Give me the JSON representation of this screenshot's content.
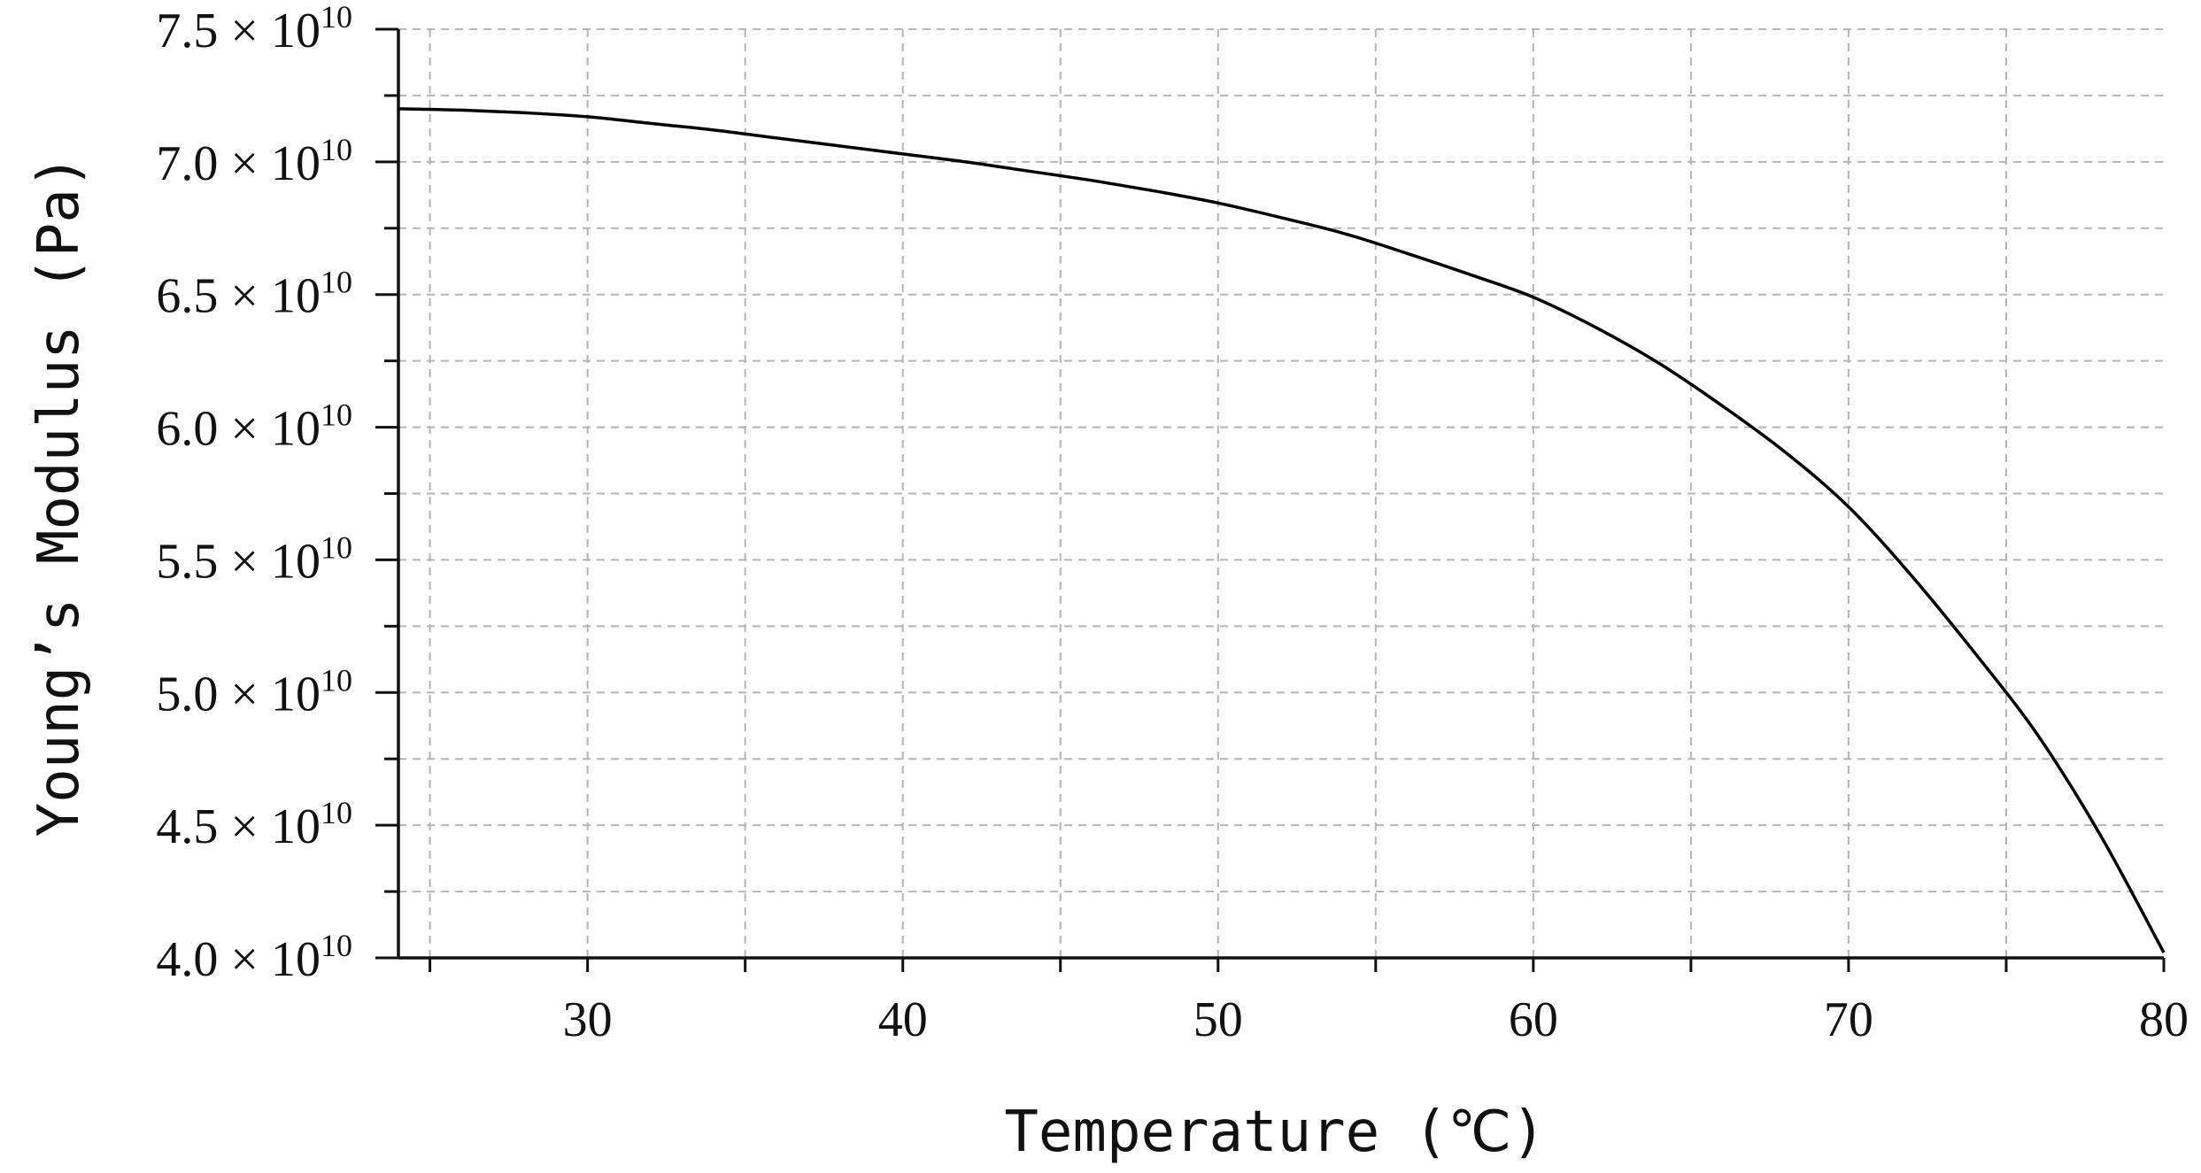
{
  "chart_data": {
    "type": "line",
    "title": "",
    "xlabel": "Temperature (℃)",
    "ylabel": "Young’s Modulus (Pa)",
    "xlim": [
      24,
      80
    ],
    "ylim": [
      40000000000.0,
      75000000000.0
    ],
    "x_ticks": [
      30,
      40,
      50,
      60,
      70,
      80
    ],
    "x_tick_labels": [
      "30",
      "40",
      "50",
      "60",
      "70",
      "80"
    ],
    "x_minor_ticks": [
      25,
      35,
      45,
      55,
      65,
      75
    ],
    "y_ticks": [
      40000000000.0,
      45000000000.0,
      50000000000.0,
      55000000000.0,
      60000000000.0,
      65000000000.0,
      70000000000.0,
      75000000000.0
    ],
    "y_tick_labels": [
      {
        "mantissa": "4.0 ×",
        "base": "10",
        "exponent": "10"
      },
      {
        "mantissa": "4.5 ×",
        "base": "10",
        "exponent": "10"
      },
      {
        "mantissa": "5.0 ×",
        "base": "10",
        "exponent": "10"
      },
      {
        "mantissa": "5.5 ×",
        "base": "10",
        "exponent": "10"
      },
      {
        "mantissa": "6.0 ×",
        "base": "10",
        "exponent": "10"
      },
      {
        "mantissa": "6.5 ×",
        "base": "10",
        "exponent": "10"
      },
      {
        "mantissa": "7.0 ×",
        "base": "10",
        "exponent": "10"
      },
      {
        "mantissa": "7.5 ×",
        "base": "10",
        "exponent": "10"
      }
    ],
    "y_minor_ticks": [
      42500000000.0,
      47500000000.0,
      52500000000.0,
      57500000000.0,
      62500000000.0,
      67500000000.0,
      72500000000.0
    ],
    "grid": true,
    "legend": "none",
    "series": [
      {
        "color": "#000000",
        "x": [
          24,
          26,
          28,
          30,
          32,
          34,
          36,
          38,
          40,
          42,
          44,
          46,
          48,
          50,
          52,
          54,
          56,
          58,
          60,
          62,
          64,
          66,
          68,
          70,
          72,
          74,
          76,
          78,
          80
        ],
        "y": [
          72000000000.0,
          71950000000.0,
          71850000000.0,
          71700000000.0,
          71450000000.0,
          71200000000.0,
          70900000000.0,
          70600000000.0,
          70300000000.0,
          70000000000.0,
          69650000000.0,
          69300000000.0,
          68900000000.0,
          68450000000.0,
          67900000000.0,
          67300000000.0,
          66550000000.0,
          65750000000.0,
          64900000000.0,
          63750000000.0,
          62400000000.0,
          60800000000.0,
          59050000000.0,
          57000000000.0,
          54400000000.0,
          51500000000.0,
          48400000000.0,
          44600000000.0,
          40200000000.0
        ]
      }
    ]
  }
}
